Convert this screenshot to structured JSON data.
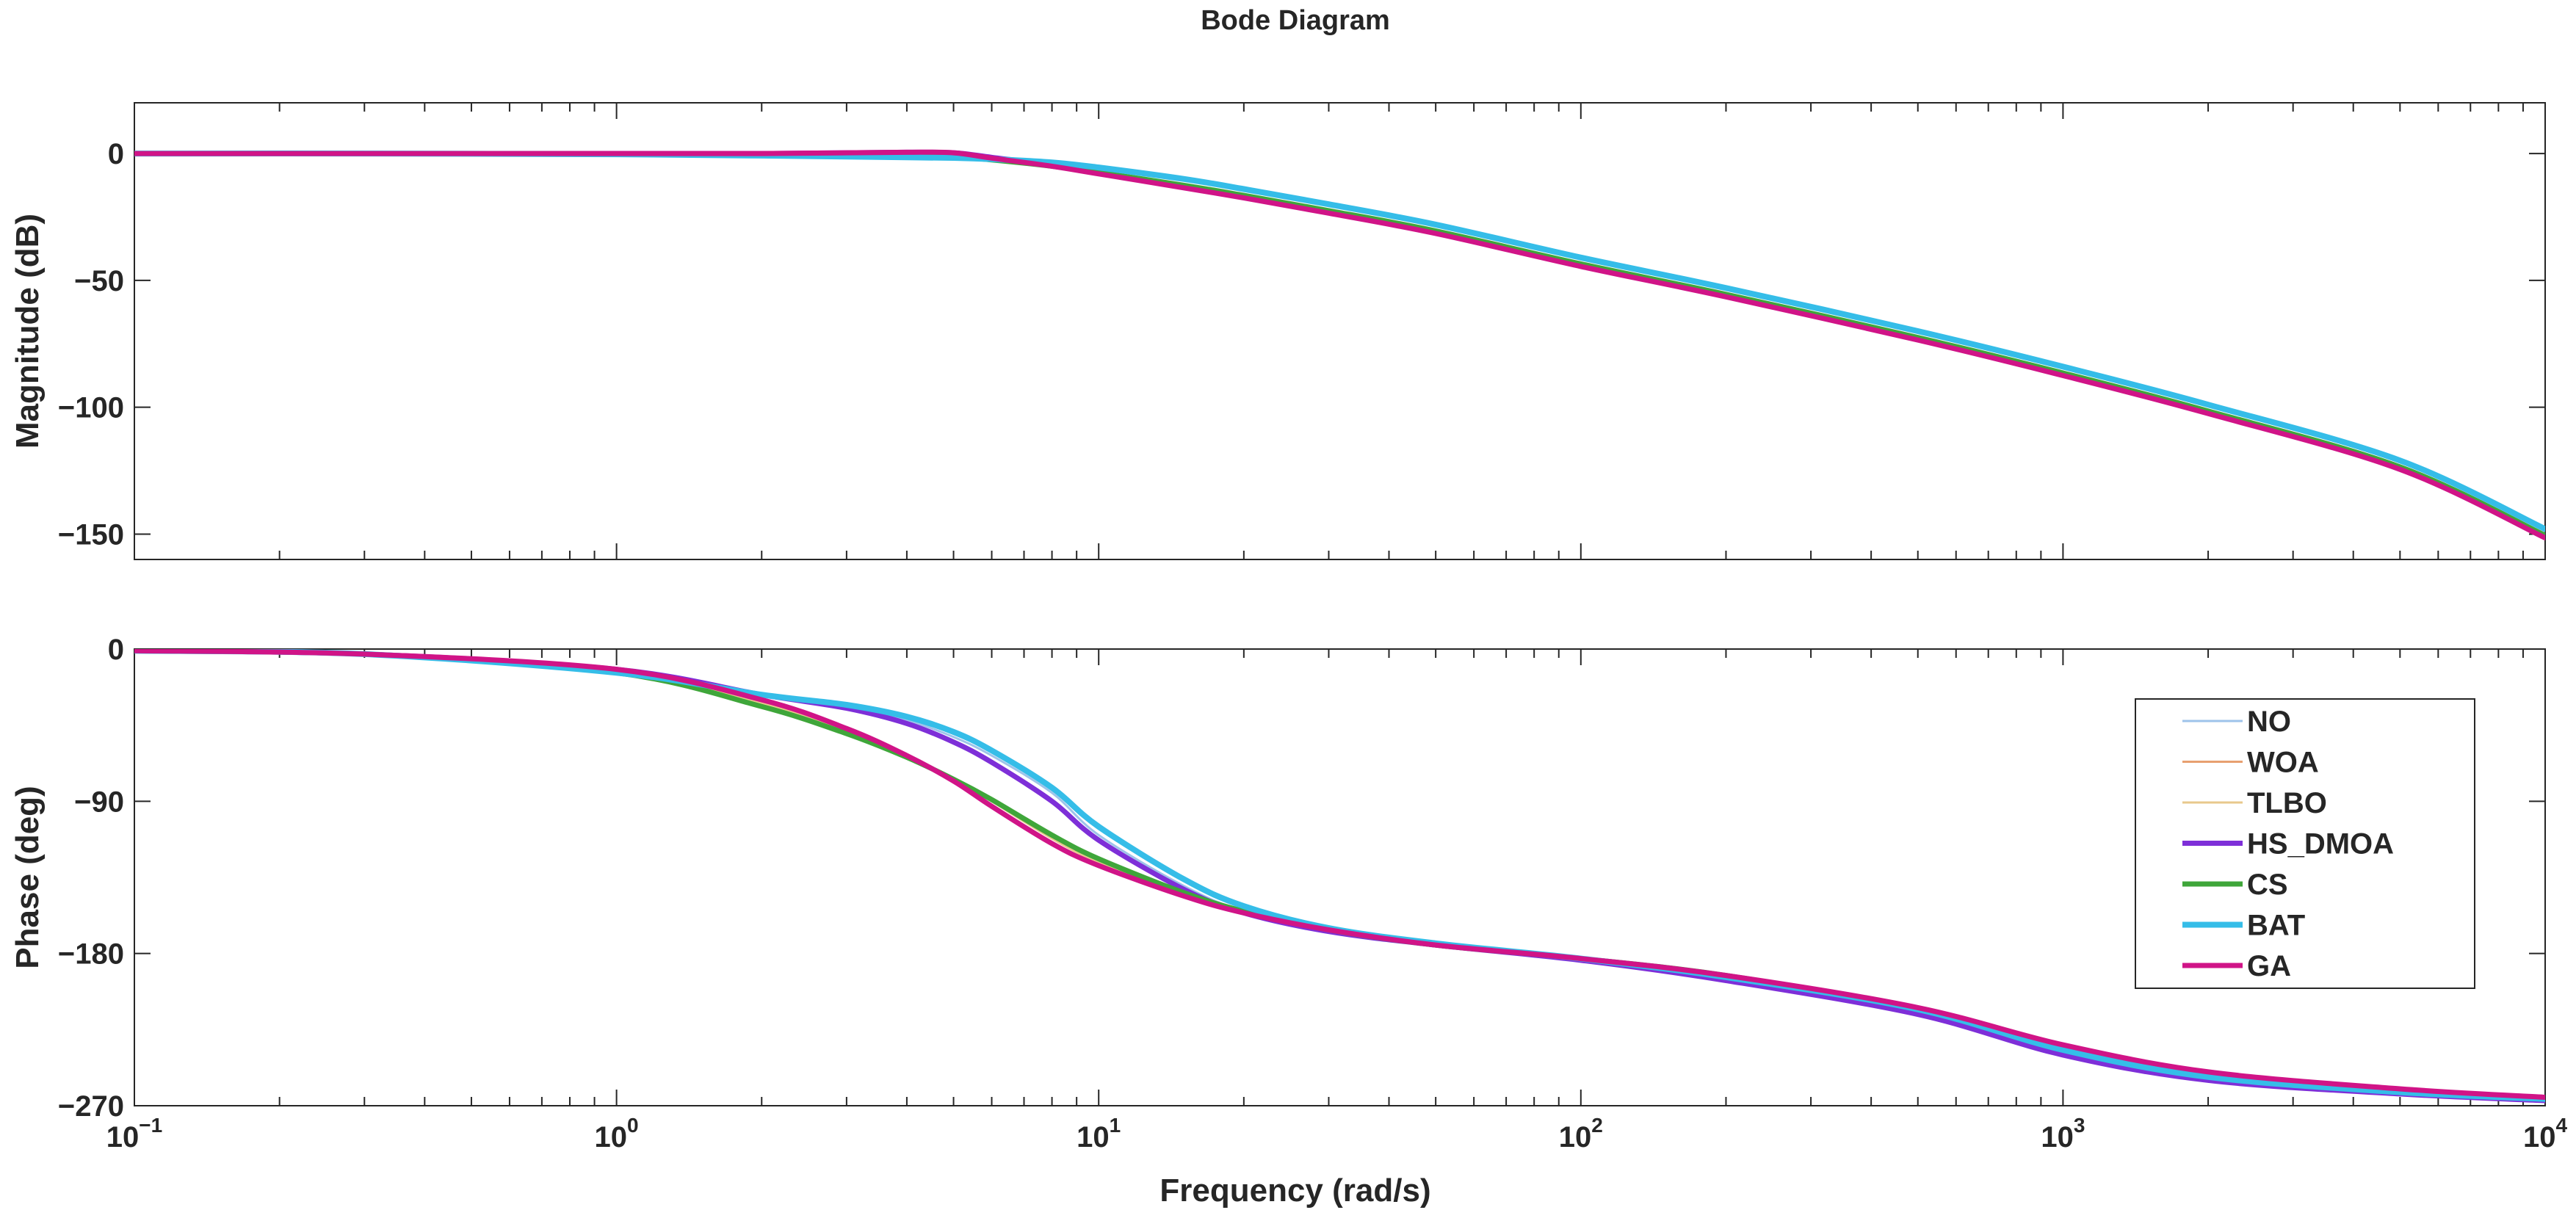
{
  "chart_data": {
    "type": "line",
    "title": "Bode Diagram",
    "xlabel": "Frequency (rad/s)",
    "x_scale": "log",
    "xlim": [
      0.1,
      10000
    ],
    "x_tick_labels": [
      {
        "base": "10",
        "exp": "−1"
      },
      {
        "base": "10",
        "exp": "0"
      },
      {
        "base": "10",
        "exp": "1"
      },
      {
        "base": "10",
        "exp": "2"
      },
      {
        "base": "10",
        "exp": "3"
      },
      {
        "base": "10",
        "exp": "4"
      }
    ],
    "legend_position": "inside-right (phase panel)",
    "grid": false,
    "x": [
      0.1,
      0.3,
      1,
      2,
      3,
      4,
      5,
      6,
      8,
      10,
      15,
      20,
      30,
      50,
      100,
      200,
      500,
      1000,
      2000,
      5000,
      10000
    ],
    "panels": [
      {
        "ylabel": "Magnitude (dB)",
        "ylim": [
          -160,
          20
        ],
        "yticks": [
          {
            "value": 0,
            "label": "0"
          },
          {
            "value": -50,
            "label": "−50"
          },
          {
            "value": -100,
            "label": "−100"
          },
          {
            "value": -150,
            "label": "−150"
          }
        ],
        "series": [
          {
            "name": "NO",
            "color": "#9ec3ea",
            "width": 3,
            "values": [
              0,
              0,
              -0.3,
              -0.8,
              -1.2,
              -1.5,
              -1.7,
              -2.2,
              -3.5,
              -5.5,
              -10,
              -14,
              -20,
              -28,
              -41,
              -53,
              -70,
              -84,
              -99,
              -121,
              -148
            ]
          },
          {
            "name": "WOA",
            "color": "#e8a070",
            "width": 3,
            "values": [
              0,
              0,
              0,
              0,
              0.3,
              0.5,
              0.3,
              -1.5,
              -4.5,
              -7.5,
              -13,
              -17,
              -23,
              -31,
              -44,
              -56,
              -73,
              -87,
              -102,
              -124,
              -151
            ]
          },
          {
            "name": "TLBO",
            "color": "#e8c98c",
            "width": 3,
            "values": [
              0,
              0,
              0,
              0,
              0.3,
              0.5,
              0.3,
              -1.5,
              -4.5,
              -7.5,
              -13,
              -17,
              -23,
              -31,
              -44,
              -56,
              -73,
              -87,
              -102,
              -124,
              -151
            ]
          },
          {
            "name": "HS_DMOA",
            "color": "#7e2fd8",
            "width": 7,
            "values": [
              0,
              0,
              0,
              0,
              0.3,
              0.5,
              0.3,
              -1.5,
              -4.5,
              -7.5,
              -13,
              -17,
              -23,
              -31,
              -44,
              -56,
              -73,
              -87,
              -102,
              -124,
              -151
            ]
          },
          {
            "name": "CS",
            "color": "#3fa63a",
            "width": 7,
            "values": [
              0,
              0,
              -0.1,
              -0.3,
              -0.5,
              -0.8,
              -1.2,
              -2.5,
              -5,
              -7.5,
              -12.5,
              -16.5,
              -22.5,
              -30.5,
              -43.5,
              -55.5,
              -72.5,
              -86.5,
              -101.5,
              -123.5,
              -150.5
            ]
          },
          {
            "name": "BAT",
            "color": "#35bde8",
            "width": 8,
            "values": [
              0,
              0,
              -0.3,
              -0.8,
              -1.2,
              -1.5,
              -1.7,
              -2.2,
              -3.5,
              -5.5,
              -10,
              -14,
              -20,
              -28,
              -41,
              -53,
              -70,
              -84,
              -99,
              -121,
              -148
            ]
          },
          {
            "name": "GA",
            "color": "#d01487",
            "width": 7,
            "values": [
              0,
              0,
              0,
              0,
              0.3,
              0.5,
              0.3,
              -1.8,
              -5,
              -8,
              -13.5,
              -17.5,
              -23.5,
              -31.5,
              -44.5,
              -56.5,
              -73.5,
              -87.5,
              -102.5,
              -124.5,
              -151.5
            ]
          }
        ]
      },
      {
        "ylabel": "Phase (deg)",
        "ylim": [
          -270,
          0
        ],
        "yticks": [
          {
            "value": 0,
            "label": "0"
          },
          {
            "value": -90,
            "label": "−90"
          },
          {
            "value": -180,
            "label": "−180"
          },
          {
            "value": -270,
            "label": "−270"
          }
        ],
        "series": [
          {
            "name": "NO",
            "color": "#9ec3ea",
            "width": 3,
            "values": [
              -1,
              -3,
              -14,
              -27,
              -34,
              -42,
              -52,
              -63,
              -85,
              -110,
              -140,
              -155,
              -167,
              -175,
              -184,
              -195,
              -215,
              -238,
              -253,
              -262,
              -266
            ]
          },
          {
            "name": "WOA",
            "color": "#e8a070",
            "width": 3,
            "values": [
              -1,
              -3,
              -12,
              -32,
              -48,
              -64,
              -77,
              -90,
              -112,
              -126,
              -145,
              -156,
              -166,
              -175,
              -183,
              -193,
              -212,
              -235,
              -251,
              -261,
              -266
            ]
          },
          {
            "name": "TLBO",
            "color": "#e8c98c",
            "width": 3,
            "values": [
              -1,
              -3,
              -12,
              -32,
              -48,
              -64,
              -77,
              -90,
              -112,
              -126,
              -145,
              -156,
              -166,
              -175,
              -183,
              -193,
              -212,
              -235,
              -251,
              -261,
              -266
            ]
          },
          {
            "name": "HS_DMOA",
            "color": "#7e2fd8",
            "width": 7,
            "values": [
              -1,
              -3,
              -12,
              -27,
              -35,
              -44,
              -55,
              -67,
              -90,
              -113,
              -142,
              -156,
              -167,
              -175,
              -184,
              -196,
              -216,
              -240,
              -255,
              -263,
              -267
            ]
          },
          {
            "name": "CS",
            "color": "#3fa63a",
            "width": 7,
            "values": [
              -1,
              -3,
              -14,
              -34,
              -50,
              -64,
              -77,
              -89,
              -110,
              -124,
              -144,
              -155,
              -166,
              -175,
              -183,
              -193,
              -213,
              -236,
              -252,
              -262,
              -266
            ]
          },
          {
            "name": "BAT",
            "color": "#35bde8",
            "width": 8,
            "values": [
              -1,
              -3,
              -14,
              -27,
              -33,
              -40,
              -49,
              -60,
              -82,
              -105,
              -136,
              -152,
              -165,
              -174,
              -183,
              -194,
              -213,
              -237,
              -253,
              -262,
              -266
            ]
          },
          {
            "name": "GA",
            "color": "#d01487",
            "width": 7,
            "values": [
              -1,
              -3,
              -12,
              -30,
              -47,
              -63,
              -78,
              -93,
              -115,
              -128,
              -146,
              -156,
              -166,
              -175,
              -183,
              -193,
              -212,
              -234,
              -250,
              -260,
              -265
            ]
          }
        ]
      }
    ]
  }
}
